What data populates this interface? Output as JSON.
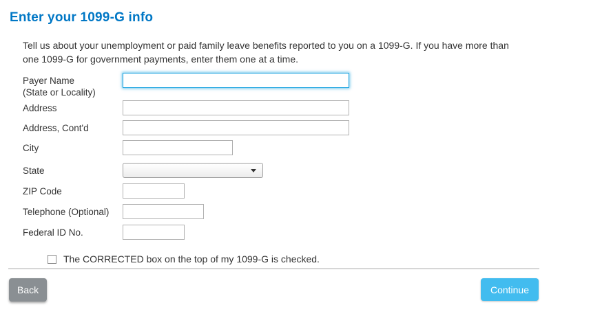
{
  "header": {
    "title": "Enter your 1099-G info"
  },
  "intro": {
    "text": "Tell us about your unemployment or paid family leave benefits reported to you on a 1099-G. If you have more than one 1099-G for government payments, enter them one at a time."
  },
  "form": {
    "payer_name": {
      "label_line1": "Payer Name",
      "label_line2": "(State or Locality)",
      "value": "",
      "focused": true
    },
    "address": {
      "label": "Address",
      "value": ""
    },
    "address_contd": {
      "label": "Address, Cont'd",
      "value": ""
    },
    "city": {
      "label": "City",
      "value": ""
    },
    "state": {
      "label": "State",
      "selected_option": ""
    },
    "zip_code": {
      "label": "ZIP Code",
      "value": ""
    },
    "telephone": {
      "label": "Telephone (Optional)",
      "value": ""
    },
    "federal_id": {
      "label": "Federal ID No.",
      "value": ""
    },
    "corrected_checkbox": {
      "label": "The CORRECTED box on the top of my 1099-G is checked.",
      "checked": false
    }
  },
  "footer": {
    "back_label": "Back",
    "continue_label": "Continue"
  },
  "colors": {
    "title_blue": "#0077c5",
    "focused_input_border": "#1aa3e0",
    "input_border": "#b0b0b0",
    "text": "#333333",
    "back_button": "#8a8f93",
    "continue_button": "#42bcef",
    "divider": "#d6d6d6"
  }
}
